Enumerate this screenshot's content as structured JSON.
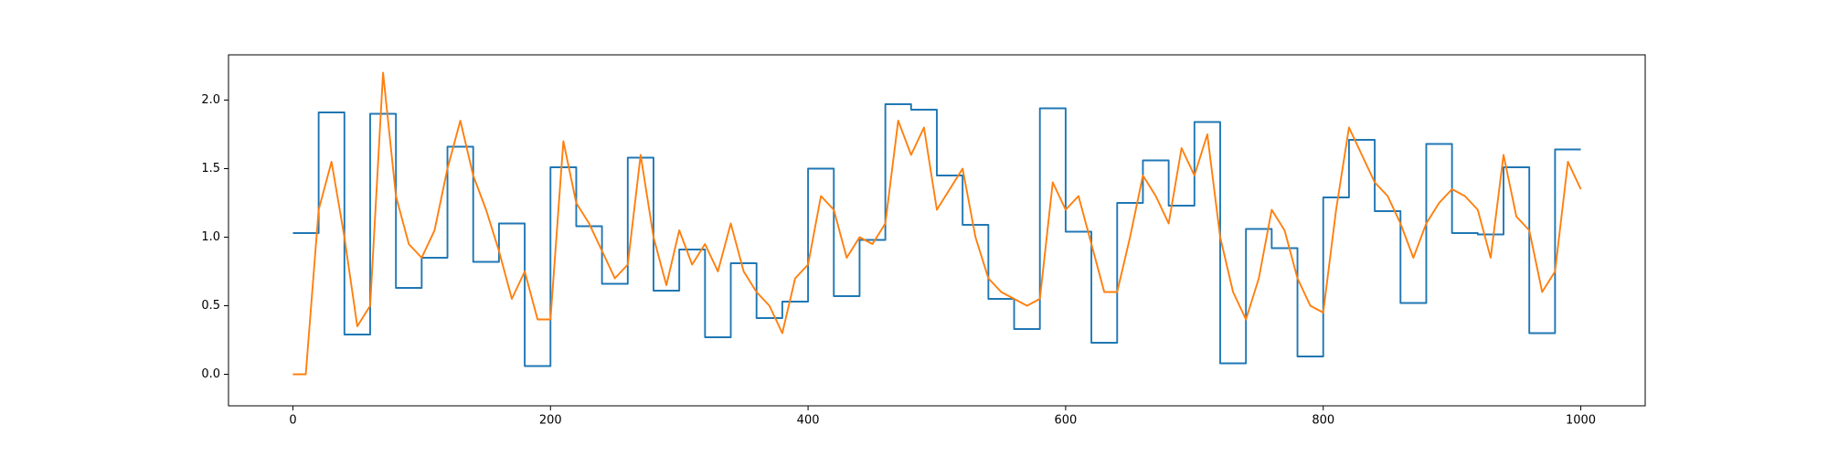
{
  "chart_data": {
    "type": "line",
    "xlim": [
      -50,
      1050
    ],
    "ylim": [
      -0.23,
      2.33
    ],
    "xticks": [
      0,
      200,
      400,
      600,
      800,
      1000
    ],
    "yticks": [
      {
        "value": 0,
        "label": "0.0"
      },
      0.5,
      {
        "value": 1,
        "label": "1.0"
      },
      1.5,
      {
        "value": 2,
        "label": "2.0"
      }
    ],
    "grid": false,
    "series": [
      {
        "color": "#1f77b4",
        "drawstyle": "steps-post",
        "x": [
          0,
          20,
          40,
          60,
          80,
          100,
          120,
          140,
          160,
          180,
          200,
          220,
          240,
          260,
          280,
          300,
          320,
          340,
          360,
          380,
          400,
          420,
          440,
          460,
          480,
          500,
          520,
          540,
          560,
          580,
          600,
          620,
          640,
          660,
          680,
          700,
          720,
          740,
          760,
          780,
          800,
          820,
          840,
          860,
          880,
          900,
          920,
          940,
          960,
          980,
          1000
        ],
        "values": [
          1.03,
          1.91,
          0.29,
          1.9,
          0.63,
          0.85,
          1.66,
          0.82,
          1.1,
          0.06,
          1.51,
          1.08,
          0.66,
          1.58,
          0.61,
          0.91,
          0.27,
          0.81,
          0.41,
          0.53,
          1.5,
          0.57,
          0.98,
          1.97,
          1.93,
          1.45,
          1.09,
          0.55,
          0.33,
          1.94,
          1.04,
          0.23,
          1.25,
          1.56,
          1.23,
          1.84,
          0.08,
          1.06,
          0.92,
          0.13,
          1.29,
          1.71,
          1.19,
          0.52,
          1.68,
          1.03,
          1.02,
          1.51,
          0.3,
          1.64,
          1.64
        ]
      },
      {
        "color": "#ff7f0e",
        "drawstyle": "default",
        "x": [
          0,
          10,
          20,
          30,
          40,
          50,
          60,
          70,
          80,
          90,
          100,
          110,
          120,
          130,
          140,
          150,
          160,
          170,
          180,
          190,
          200,
          210,
          220,
          230,
          240,
          250,
          260,
          270,
          280,
          290,
          300,
          310,
          320,
          330,
          340,
          350,
          360,
          370,
          380,
          390,
          400,
          410,
          420,
          430,
          440,
          450,
          460,
          470,
          480,
          490,
          500,
          510,
          520,
          530,
          540,
          550,
          560,
          570,
          580,
          590,
          600,
          610,
          620,
          630,
          640,
          650,
          660,
          670,
          680,
          690,
          700,
          710,
          720,
          730,
          740,
          750,
          760,
          770,
          780,
          790,
          800,
          810,
          820,
          830,
          840,
          850,
          860,
          870,
          880,
          890,
          900,
          910,
          920,
          930,
          940,
          950,
          960,
          970,
          980,
          990,
          1000
        ],
        "values": [
          0,
          0,
          1.2,
          1.55,
          1,
          0.35,
          0.5,
          2.2,
          1.3,
          0.95,
          0.85,
          1.05,
          1.5,
          1.85,
          1.45,
          1.2,
          0.9,
          0.55,
          0.75,
          0.4,
          0.4,
          1.7,
          1.25,
          1.1,
          0.9,
          0.7,
          0.8,
          1.6,
          1,
          0.65,
          1.05,
          0.8,
          0.95,
          0.75,
          1.1,
          0.75,
          0.6,
          0.5,
          0.3,
          0.7,
          0.8,
          1.3,
          1.2,
          0.85,
          1,
          0.95,
          1.1,
          1.85,
          1.6,
          1.8,
          1.2,
          1.35,
          1.5,
          1,
          0.7,
          0.6,
          0.55,
          0.5,
          0.55,
          1.4,
          1.2,
          1.3,
          0.95,
          0.6,
          0.6,
          1,
          1.45,
          1.3,
          1.1,
          1.65,
          1.45,
          1.75,
          1,
          0.6,
          0.4,
          0.7,
          1.2,
          1.05,
          0.7,
          0.5,
          0.45,
          1.2,
          1.8,
          1.6,
          1.4,
          1.3,
          1.1,
          0.85,
          1.1,
          1.25,
          1.35,
          1.3,
          1.2,
          0.85,
          1.6,
          1.15,
          1.05,
          0.6,
          0.75,
          1.55,
          1.35
        ]
      }
    ]
  }
}
